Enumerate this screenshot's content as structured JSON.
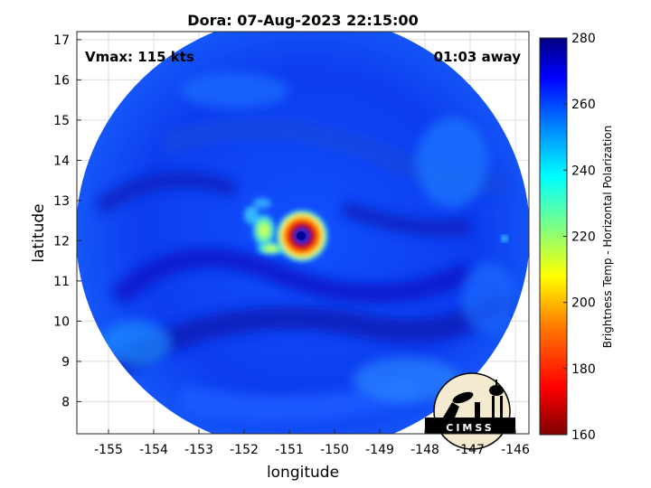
{
  "title": "Dora: 07-Aug-2023 22:15:00",
  "vmax": "Vmax: 115 kts",
  "offset": "01:03 away",
  "xlabel": "longitude",
  "ylabel": "latitude",
  "colorbar_label": "Brightness Temp - Horizontal Polarization",
  "logo_text": "CIMSS",
  "map_data": {
    "type": "heatmap",
    "x_range": [
      -155.7,
      -145.7
    ],
    "y_range": [
      7.2,
      17.2
    ],
    "x_ticks": [
      -155,
      -154,
      -153,
      -152,
      -151,
      -150,
      -149,
      -148,
      -147,
      -146
    ],
    "y_ticks": [
      8,
      9,
      10,
      11,
      12,
      13,
      14,
      15,
      16,
      17
    ],
    "colorbar_range": [
      160,
      280
    ],
    "colorbar_ticks": [
      160,
      180,
      200,
      220,
      240,
      260,
      280
    ],
    "grid": true,
    "storm_center": {
      "lon": -150.6,
      "lat": 12.2
    },
    "colormap": [
      "#7f0000",
      "#ff0000",
      "#ff7f00",
      "#ffff00",
      "#7fff7f",
      "#00ffff",
      "#007fff",
      "#0000ff",
      "#00007f"
    ]
  }
}
